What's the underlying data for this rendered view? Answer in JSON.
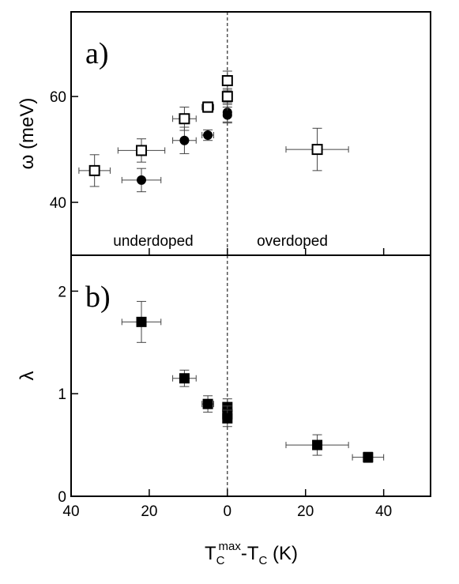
{
  "chart_data": [
    {
      "type": "scatter",
      "panel_label": "a)",
      "ylabel": "ω (meV)",
      "xlabel": "",
      "xlim": [
        -40,
        52
      ],
      "ylim": [
        30,
        76
      ],
      "x_ticks": [
        -40,
        -20,
        0,
        20,
        40
      ],
      "x_tick_labels": [
        "40",
        "20",
        "0",
        "20",
        "40"
      ],
      "y_ticks": [
        40,
        60
      ],
      "y_tick_labels": [
        "40",
        "60"
      ],
      "annotations": [
        "underdoped",
        "overdoped"
      ],
      "reference_line_x": 0,
      "series": [
        {
          "marker": "open-square",
          "points": [
            {
              "x": -34,
              "y": 46,
              "xerr": 4,
              "yerr": 3
            },
            {
              "x": -22,
              "y": 49.8,
              "xerr": 6,
              "yerr": 2.2
            },
            {
              "x": -11,
              "y": 55.8,
              "xerr": 3,
              "yerr": 2.2
            },
            {
              "x": -5,
              "y": 58,
              "xerr": 1.5,
              "yerr": 1
            },
            {
              "x": 0,
              "y": 63,
              "xerr": 0.8,
              "yerr": 1.8
            },
            {
              "x": 0,
              "y": 60,
              "xerr": 0.8,
              "yerr": 1.5
            },
            {
              "x": 23,
              "y": 50,
              "xerr": 8,
              "yerr": 4
            }
          ]
        },
        {
          "marker": "filled-circle",
          "points": [
            {
              "x": -22,
              "y": 44.2,
              "xerr": 5,
              "yerr": 2.2
            },
            {
              "x": -11,
              "y": 51.7,
              "xerr": 3,
              "yerr": 2.5
            },
            {
              "x": -5,
              "y": 52.7,
              "xerr": 1.5,
              "yerr": 1
            },
            {
              "x": 0,
              "y": 57,
              "xerr": 0.8,
              "yerr": 1.8
            },
            {
              "x": 0,
              "y": 56.5,
              "xerr": 0.8,
              "yerr": 1.5
            }
          ]
        }
      ]
    },
    {
      "type": "scatter",
      "panel_label": "b)",
      "ylabel": "λ",
      "xlabel_main": "T",
      "xlabel_sub1": "C",
      "xlabel_sup": "max",
      "xlabel_mid": "-T",
      "xlabel_sub2": "C",
      "xlabel_tail": " (K)",
      "xlim": [
        -40,
        52
      ],
      "ylim": [
        0,
        2.35
      ],
      "x_ticks": [
        -40,
        -20,
        0,
        20,
        40
      ],
      "x_tick_labels": [
        "40",
        "20",
        "0",
        "20",
        "40"
      ],
      "y_ticks": [
        0,
        1,
        2
      ],
      "y_tick_labels": [
        "0",
        "1",
        "2"
      ],
      "reference_line_x": 0,
      "series": [
        {
          "marker": "filled-square",
          "points": [
            {
              "x": -22,
              "y": 1.7,
              "xerr": 5,
              "yerr": 0.2
            },
            {
              "x": -11,
              "y": 1.15,
              "xerr": 3,
              "yerr": 0.08
            },
            {
              "x": -5,
              "y": 0.9,
              "xerr": 1.5,
              "yerr": 0.08
            },
            {
              "x": 0,
              "y": 0.87,
              "xerr": 0.8,
              "yerr": 0.08
            },
            {
              "x": 0,
              "y": 0.8,
              "xerr": 0.8,
              "yerr": 0.08
            },
            {
              "x": 0,
              "y": 0.76,
              "xerr": 0.8,
              "yerr": 0.08
            },
            {
              "x": 23,
              "y": 0.5,
              "xerr": 8,
              "yerr": 0.1
            },
            {
              "x": 36,
              "y": 0.38,
              "xerr": 4,
              "yerr": 0.05
            }
          ]
        }
      ]
    }
  ]
}
